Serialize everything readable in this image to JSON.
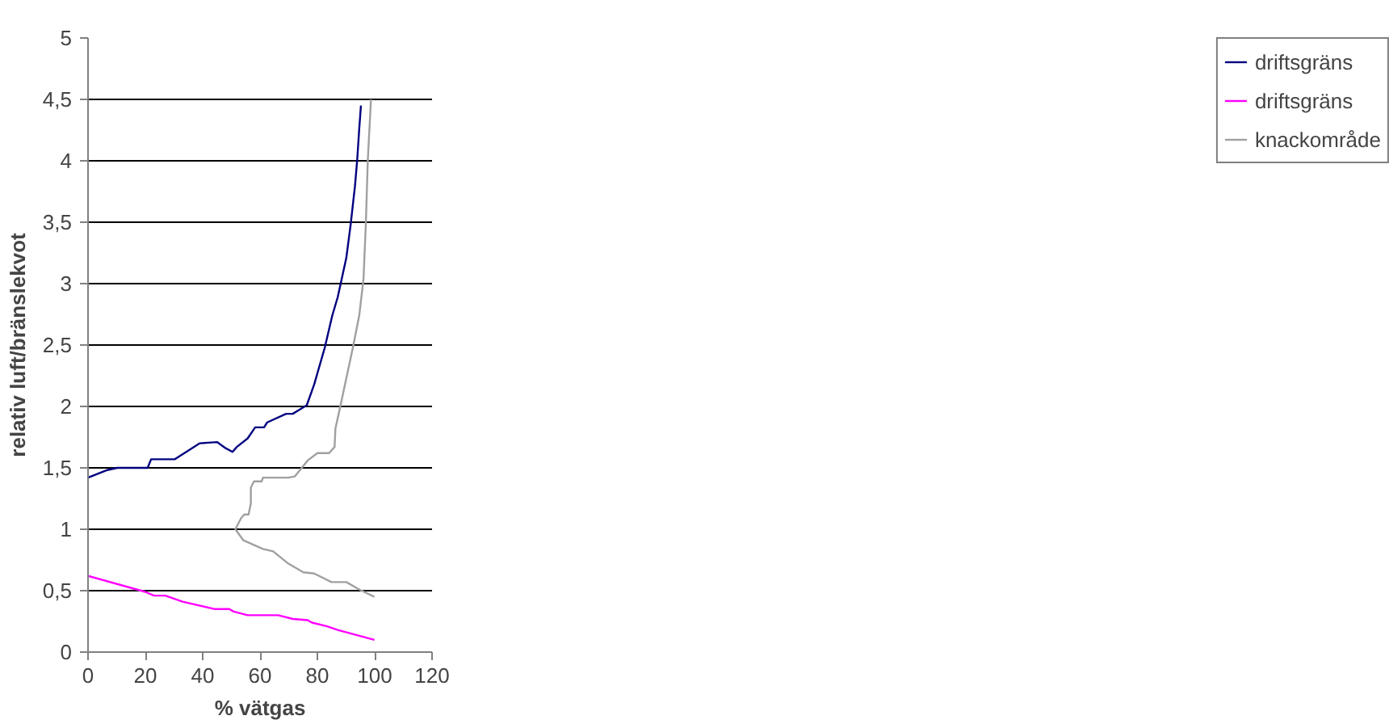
{
  "chart_data": {
    "type": "line",
    "xlabel": "% vätgas",
    "ylabel": "relativ luft/bränslekvot",
    "xlim": [
      0,
      120
    ],
    "xticks": [
      0,
      20,
      40,
      60,
      80,
      100,
      120
    ],
    "ylim": [
      0,
      5
    ],
    "yticks": [
      0,
      {
        "value": 0.5,
        "label": "0,5"
      },
      1,
      {
        "value": 1.5,
        "label": "1,5"
      },
      2,
      {
        "value": 2.5,
        "label": "2,5"
      },
      3,
      {
        "value": 3.5,
        "label": "3,5"
      },
      4,
      {
        "value": 4.5,
        "label": "4,5"
      },
      5
    ],
    "grid": "y",
    "legend": "right",
    "marker": "none",
    "line_style": "solid",
    "series": [
      {
        "name": "driftsgräns",
        "color": "#000080",
        "x": [
          0,
          6.4,
          10.2,
          20.8,
          22,
          30.3,
          39,
          45,
          48,
          50.4,
          51.9,
          55.7,
          58.3,
          61.4,
          62.5,
          69.1,
          71.4,
          76.3,
          78.9,
          82.6,
          85.2,
          87.1,
          90.1,
          91.6,
          93.1,
          93.9,
          94.6,
          95.2
        ],
        "values": [
          1.42,
          1.48,
          1.5,
          1.5,
          1.57,
          1.57,
          1.7,
          1.71,
          1.66,
          1.63,
          1.67,
          1.74,
          1.83,
          1.83,
          1.87,
          1.94,
          1.94,
          2.01,
          2.18,
          2.48,
          2.74,
          2.89,
          3.21,
          3.48,
          3.79,
          4.01,
          4.26,
          4.45
        ]
      },
      {
        "name": "driftsgräns",
        "color": "#ff00ff",
        "x": [
          0,
          20,
          23,
          27,
          33,
          44.3,
          49.3,
          50.8,
          55.7,
          66.3,
          71.5,
          76.6,
          78.1,
          83.4,
          87.1,
          99.9
        ],
        "values": [
          0.62,
          0.49,
          0.46,
          0.46,
          0.41,
          0.35,
          0.35,
          0.33,
          0.3,
          0.3,
          0.27,
          0.26,
          0.24,
          0.21,
          0.18,
          0.1
        ]
      },
      {
        "name": "knackområde",
        "color": "#a0a0a0",
        "x": [
          99.9,
          94.6,
          90.1,
          84.9,
          78.9,
          75.1,
          69.9,
          64.6,
          61,
          54.2,
          51.4,
          53.4,
          54.5,
          56,
          56.8,
          56.8,
          57.9,
          60.6,
          61,
          69.9,
          72.1,
          76.6,
          80,
          84.1,
          86,
          86.3,
          87.9,
          92.4,
          94.6,
          96.1,
          96.9,
          97.6,
          98.7
        ],
        "values": [
          0.45,
          0.51,
          0.57,
          0.57,
          0.64,
          0.65,
          0.72,
          0.82,
          0.84,
          0.91,
          1.0,
          1.09,
          1.12,
          1.12,
          1.21,
          1.34,
          1.39,
          1.39,
          1.42,
          1.42,
          1.43,
          1.56,
          1.62,
          1.62,
          1.67,
          1.82,
          1.99,
          2.48,
          2.74,
          3.04,
          3.48,
          4.01,
          4.5
        ]
      }
    ]
  }
}
